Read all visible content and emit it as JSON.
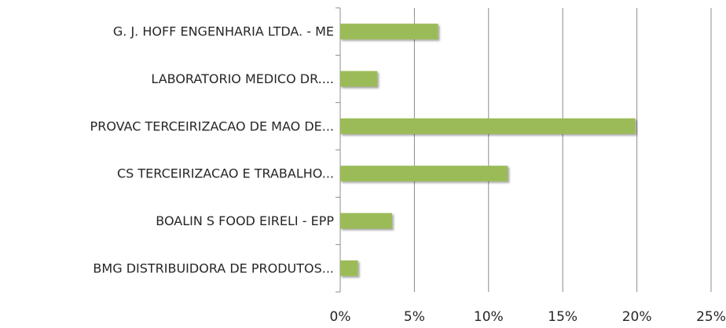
{
  "chart_data": {
    "type": "barh",
    "categories": [
      "G. J. HOFF ENGENHARIA LTDA. - ME",
      "LABORATORIO MEDICO DR....",
      "PROVAC TERCEIRIZACAO DE MAO DE...",
      "CS TERCEIRIZACAO  E TRABALHO...",
      "BOALIN S FOOD EIRELI - EPP",
      "BMG DISTRIBUIDORA DE PRODUTOS..."
    ],
    "values": [
      6.6,
      2.5,
      19.9,
      11.3,
      3.5,
      1.2
    ],
    "color": "#9bbb59",
    "xlim": [
      0,
      25
    ],
    "xticks": [
      {
        "value": 0,
        "label": "0%"
      },
      {
        "value": 5,
        "label": "5%"
      },
      {
        "value": 10,
        "label": "10%"
      },
      {
        "value": 15,
        "label": "15%"
      },
      {
        "value": 20,
        "label": "20%"
      },
      {
        "value": 25,
        "label": "25%"
      }
    ],
    "grid": true
  }
}
